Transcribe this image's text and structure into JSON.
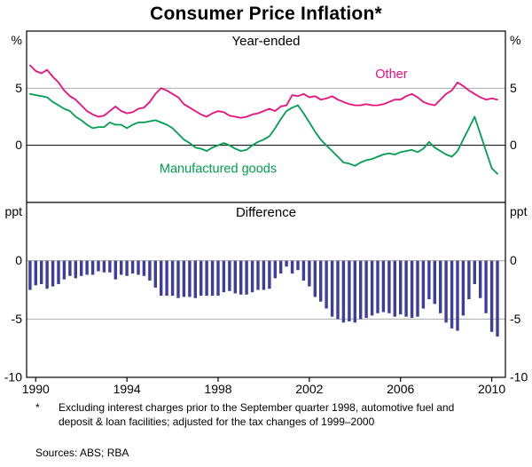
{
  "title": "Consumer Price Inflation*",
  "footnote": {
    "marker": "*",
    "text": "Excluding interest charges prior to the September quarter 1998, automotive fuel and deposit & loan facilities; adjusted for the tax changes of 1999–2000",
    "sources": "Sources: ABS; RBA"
  },
  "chart_data": {
    "type": "line+bar",
    "frequency": "quarterly",
    "x_start": 1989.75,
    "x_step": 0.25,
    "xlim": [
      1989.6,
      2010.6
    ],
    "xticks": [
      1990,
      1994,
      1998,
      2002,
      2006,
      2010
    ],
    "grid_color": "#a9a9a9",
    "panels": [
      {
        "title": "Year-ended",
        "unit": "%",
        "ylim": [
          -5,
          10
        ],
        "gridlines": [
          5
        ],
        "zero_line": true,
        "ytick_labels": [
          {
            "value": 5,
            "label": "5"
          },
          {
            "value": 0,
            "label": "0"
          }
        ]
      },
      {
        "title": "Difference",
        "unit": "ppt",
        "ylim": [
          -10,
          5
        ],
        "gridlines": [
          0,
          -5
        ],
        "zero_line": false,
        "ytick_labels": [
          {
            "value": 0,
            "label": "0"
          },
          {
            "value": -5,
            "label": "-5"
          },
          {
            "value": -10,
            "label": "-10"
          }
        ]
      }
    ],
    "series": [
      {
        "name": "Other",
        "panel": 0,
        "type": "line",
        "color": "#ed0e7d",
        "label": {
          "text": "Other",
          "x": 2005.6,
          "y": 5.9
        },
        "values": [
          7.0,
          6.5,
          6.3,
          6.6,
          6.0,
          5.5,
          4.8,
          4.3,
          4.0,
          3.5,
          3.0,
          2.7,
          2.5,
          2.6,
          3.0,
          3.4,
          3.0,
          2.8,
          2.9,
          3.2,
          3.3,
          3.8,
          4.5,
          5.0,
          4.8,
          4.5,
          4.2,
          3.6,
          3.3,
          3.0,
          2.7,
          2.5,
          2.8,
          3.0,
          2.9,
          2.6,
          2.5,
          2.4,
          2.5,
          2.7,
          2.8,
          3.0,
          3.2,
          3.0,
          3.4,
          3.5,
          4.4,
          4.3,
          4.5,
          4.2,
          4.3,
          4.0,
          4.1,
          4.3,
          4.0,
          3.8,
          3.6,
          3.5,
          3.5,
          3.6,
          3.5,
          3.5,
          3.6,
          3.8,
          4.0,
          4.0,
          4.3,
          4.5,
          4.2,
          3.8,
          3.6,
          3.5,
          4.0,
          4.5,
          4.8,
          5.5,
          5.2,
          4.8,
          4.5,
          4.2,
          4.0,
          4.1,
          4.0
        ]
      },
      {
        "name": "Manufactured goods",
        "panel": 0,
        "type": "line",
        "color": "#009e4f",
        "label": {
          "text": "Manufactured goods",
          "x": 1998.0,
          "y": -2.4
        },
        "values": [
          4.5,
          4.4,
          4.3,
          4.2,
          3.8,
          3.5,
          3.2,
          3.0,
          2.5,
          2.2,
          1.8,
          1.5,
          1.6,
          1.6,
          2.0,
          1.8,
          1.8,
          1.5,
          1.8,
          2.0,
          2.0,
          2.1,
          2.2,
          2.0,
          1.8,
          1.5,
          1.0,
          0.5,
          0.2,
          -0.2,
          -0.3,
          -0.5,
          -0.2,
          0.0,
          0.2,
          0.0,
          -0.3,
          -0.5,
          -0.4,
          0.0,
          0.3,
          0.5,
          0.8,
          1.5,
          2.3,
          3.0,
          3.3,
          3.5,
          2.8,
          2.0,
          1.2,
          0.5,
          0.0,
          -0.5,
          -1.0,
          -1.5,
          -1.6,
          -1.8,
          -1.5,
          -1.3,
          -1.2,
          -1.0,
          -0.8,
          -0.7,
          -0.8,
          -0.6,
          -0.5,
          -0.4,
          -0.6,
          -0.3,
          0.3,
          -0.2,
          -0.5,
          -0.8,
          -1.0,
          -0.5,
          0.5,
          1.5,
          2.5,
          1.0,
          -0.5,
          -2.0,
          -2.5
        ]
      },
      {
        "name": "Difference",
        "panel": 1,
        "type": "bar",
        "color": "#3e3e9f",
        "values": [
          -2.5,
          -2.1,
          -2.0,
          -2.4,
          -2.2,
          -2.0,
          -1.6,
          -1.3,
          -1.5,
          -1.3,
          -1.2,
          -1.2,
          -0.9,
          -1.0,
          -1.0,
          -1.6,
          -1.2,
          -1.3,
          -1.1,
          -1.2,
          -1.3,
          -1.7,
          -2.3,
          -3.0,
          -3.0,
          -3.0,
          -3.2,
          -3.1,
          -3.1,
          -3.2,
          -3.0,
          -3.0,
          -3.0,
          -3.0,
          -2.7,
          -2.6,
          -2.8,
          -2.9,
          -2.9,
          -2.7,
          -2.5,
          -2.5,
          -2.4,
          -1.5,
          -1.1,
          -0.5,
          -1.1,
          -0.8,
          -1.7,
          -2.2,
          -3.1,
          -3.5,
          -4.1,
          -4.8,
          -5.0,
          -5.3,
          -5.2,
          -5.3,
          -5.0,
          -4.9,
          -4.7,
          -4.5,
          -4.4,
          -4.5,
          -4.8,
          -4.6,
          -4.8,
          -4.9,
          -4.8,
          -4.1,
          -3.3,
          -3.7,
          -4.5,
          -5.3,
          -5.8,
          -6.0,
          -4.7,
          -3.3,
          -2.0,
          -3.2,
          -4.5,
          -6.1,
          -6.5
        ]
      }
    ]
  }
}
